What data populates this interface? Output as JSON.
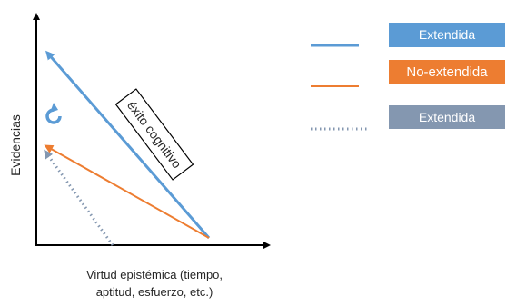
{
  "diagram": {
    "y_axis_label": "Evidencias",
    "x_axis_label_line1": "Virtud epistémica (tiempo,",
    "x_axis_label_line2": "aptitud, esfuerzo, etc.)",
    "callout_label": "éxito cognitivo",
    "rotation_symbol": "rotate-arrow-icon"
  },
  "legend": {
    "items": [
      {
        "label": "Extendida",
        "line_style": "solid",
        "line_color": "#5b9bd5",
        "box_color": "#5b9bd5"
      },
      {
        "label": "No-extendida",
        "line_style": "solid",
        "line_color": "#ed7d31",
        "box_color": "#ed7d31"
      },
      {
        "label": "Extendida",
        "line_style": "dotted",
        "line_color": "#8497b0",
        "box_color": "#8497b0"
      }
    ]
  },
  "colors": {
    "blue": "#5b9bd5",
    "orange": "#ed7d31",
    "slate": "#8497b0",
    "axis": "#000000"
  }
}
